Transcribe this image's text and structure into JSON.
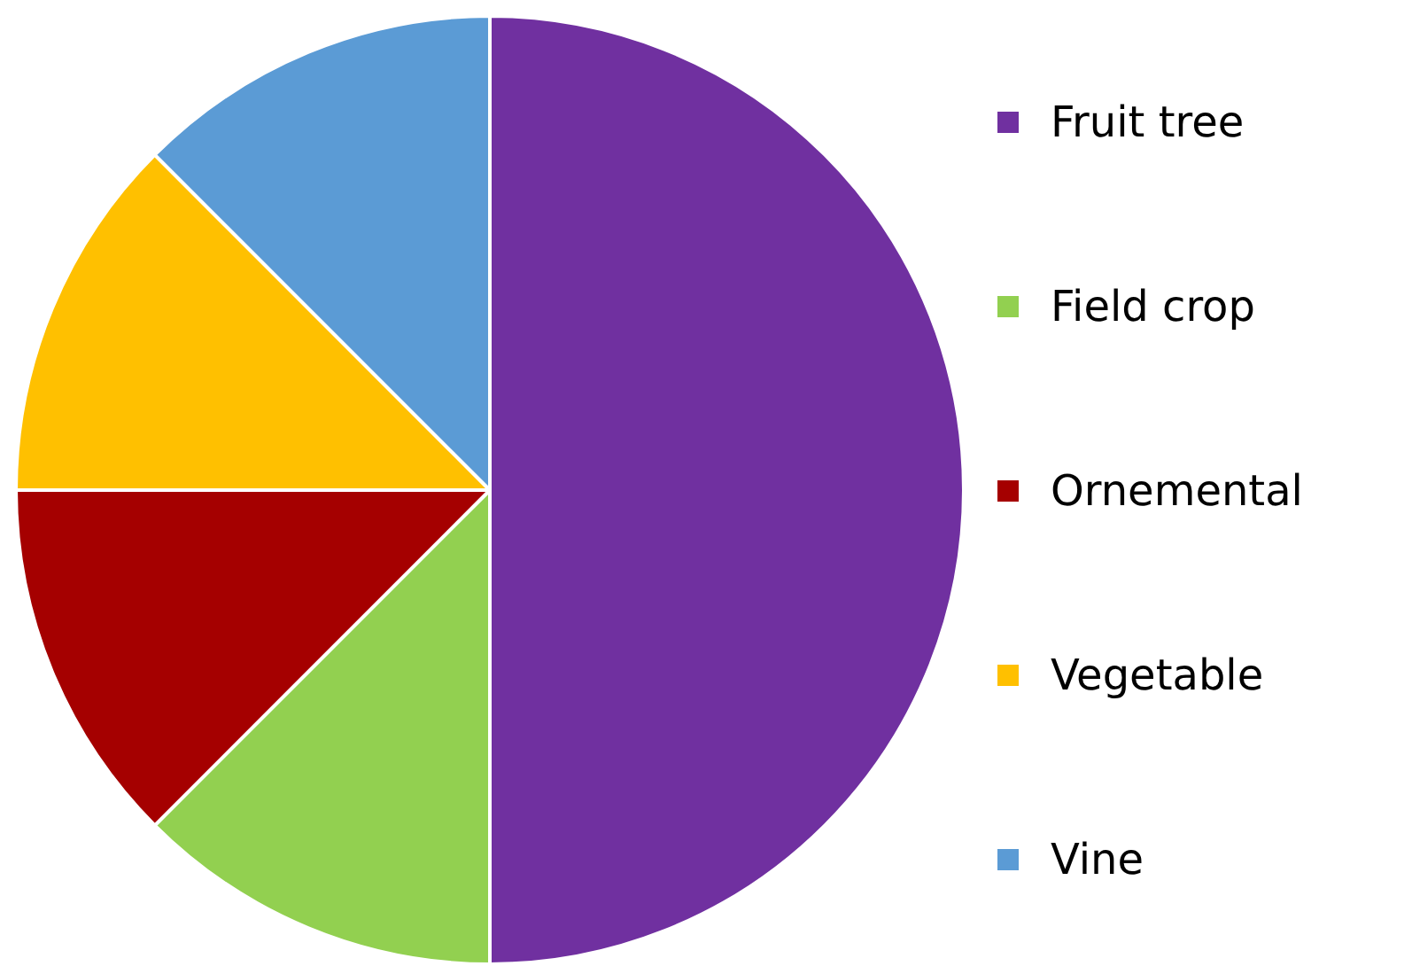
{
  "chart_data": {
    "type": "pie",
    "categories": [
      "Fruit tree",
      "Field crop",
      "Ornemental",
      "Vegetable",
      "Vine"
    ],
    "values": [
      50,
      12.5,
      12.5,
      12.5,
      12.5
    ],
    "colors": [
      "#7030a0",
      "#92d050",
      "#a50000",
      "#ffc000",
      "#5b9bd5"
    ],
    "legend": "right"
  }
}
